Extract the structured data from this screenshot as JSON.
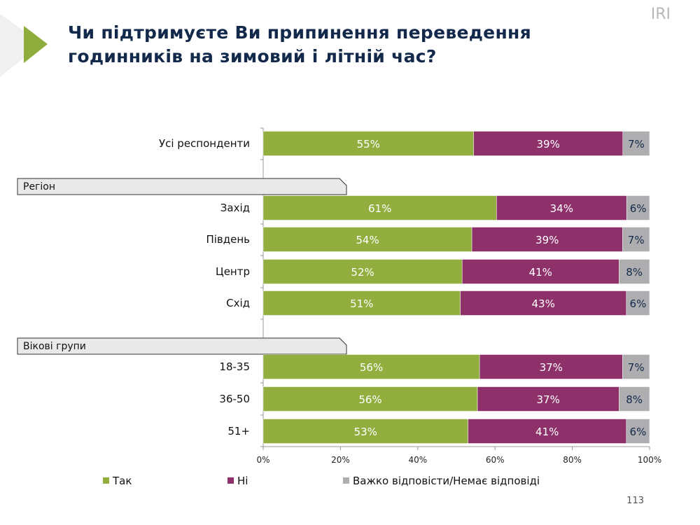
{
  "header": {
    "title_line1": "Чи підтримуєте Ви припинення переведення",
    "title_line2": "годинників на зимовий і літній час?",
    "brand": "IRI"
  },
  "footer": {
    "page_number": "113"
  },
  "colors": {
    "yes": "#92ae3e",
    "no": "#8e316b",
    "dk": "#aeaeb0",
    "accent": "#8fad3c",
    "title": "#13294b"
  },
  "chart_data": {
    "type": "bar",
    "stacked": true,
    "orientation": "horizontal",
    "categories": [
      "Усі респонденти",
      "Захід",
      "Південь",
      "Центр",
      "Схід",
      "18-35",
      "36-50",
      "51+"
    ],
    "groups": [
      {
        "label": "Регіон",
        "before_index": 1
      },
      {
        "label": "Вікові групи",
        "before_index": 5
      }
    ],
    "series": [
      {
        "name": "Так",
        "values": [
          55,
          61,
          54,
          52,
          51,
          56,
          56,
          53
        ]
      },
      {
        "name": "Ні",
        "values": [
          39,
          34,
          39,
          41,
          43,
          37,
          37,
          41
        ]
      },
      {
        "name": "Важко відповісти/Немає відповіді",
        "values": [
          7,
          6,
          7,
          8,
          6,
          7,
          8,
          6
        ]
      }
    ],
    "xlim": [
      0,
      100
    ],
    "xticks": [
      "0%",
      "20%",
      "40%",
      "60%",
      "80%",
      "100%"
    ],
    "legend": "bottom"
  }
}
